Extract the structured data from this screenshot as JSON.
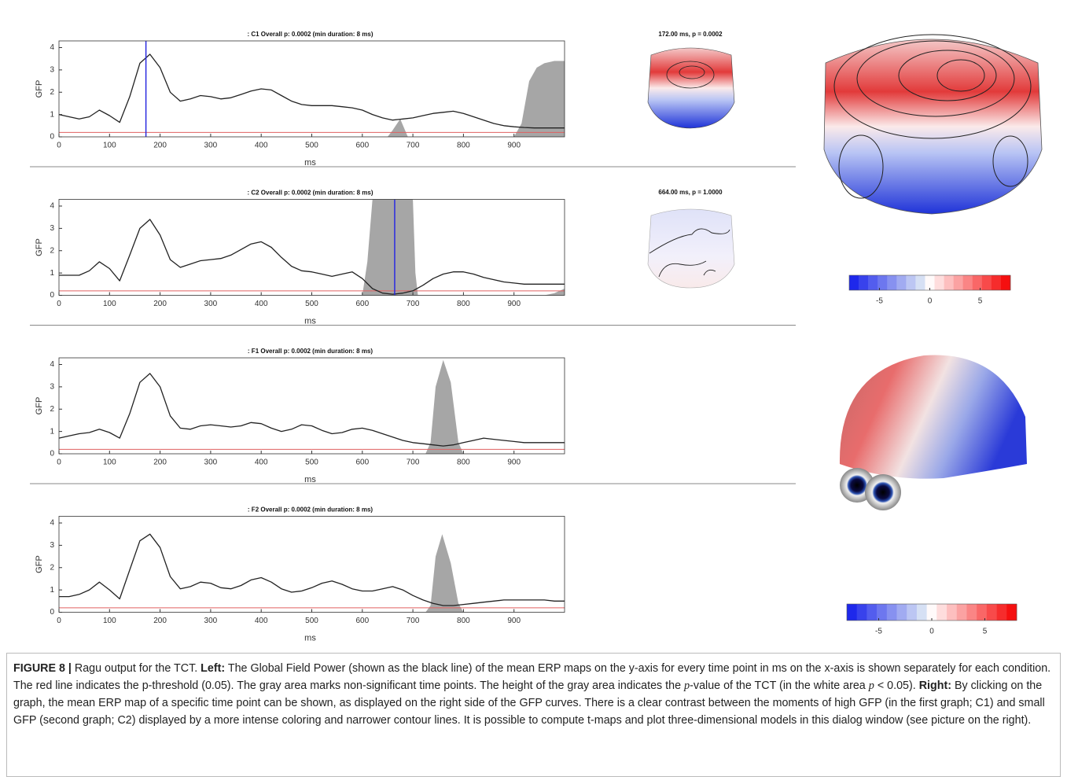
{
  "chart_data": [
    {
      "type": "line",
      "title": ": C1  Overall p: 0.0002 (min duration: 8 ms)",
      "xlabel": "ms",
      "ylabel": "GFP",
      "x": [
        0,
        20,
        40,
        60,
        80,
        100,
        120,
        140,
        160,
        180,
        200,
        220,
        240,
        260,
        280,
        300,
        320,
        340,
        360,
        380,
        400,
        420,
        440,
        460,
        480,
        500,
        520,
        540,
        560,
        580,
        600,
        620,
        640,
        660,
        680,
        700,
        720,
        740,
        760,
        780,
        800,
        820,
        840,
        860,
        880,
        900,
        920,
        940,
        960,
        980,
        1000
      ],
      "series": [
        {
          "color": "#222222",
          "values": [
            1.0,
            0.9,
            0.8,
            0.9,
            1.2,
            0.95,
            0.65,
            1.8,
            3.3,
            3.7,
            3.1,
            2.0,
            1.6,
            1.7,
            1.85,
            1.8,
            1.7,
            1.75,
            1.9,
            2.05,
            2.15,
            2.1,
            1.85,
            1.6,
            1.45,
            1.4,
            1.4,
            1.4,
            1.35,
            1.3,
            1.2,
            1.0,
            0.85,
            0.75,
            0.8,
            0.85,
            0.95,
            1.05,
            1.1,
            1.15,
            1.05,
            0.9,
            0.75,
            0.6,
            0.5,
            0.45,
            0.42,
            0.4,
            0.4,
            0.4,
            0.4
          ]
        },
        {
          "type": "area",
          "color": "#a6a6a6",
          "x": [
            650,
            660,
            675,
            690,
            900,
            915,
            930,
            945,
            960,
            980,
            1000
          ],
          "values": [
            0,
            0.3,
            0.8,
            0,
            0,
            0.6,
            2.5,
            3.1,
            3.3,
            3.4,
            3.4
          ]
        }
      ],
      "threshold": 0.2,
      "threshold_color": "#e06060",
      "cursor": 172,
      "cursor_color": "#2a2ae0",
      "xlim": [
        0,
        1000
      ],
      "ylim": [
        0,
        4.3
      ],
      "xticks": [
        0,
        100,
        200,
        300,
        400,
        500,
        600,
        700,
        800,
        900
      ],
      "yticks": [
        0,
        1,
        2,
        3,
        4
      ]
    },
    {
      "type": "line",
      "title": ": C2  Overall p: 0.0002 (min duration: 8 ms)",
      "xlabel": "ms",
      "ylabel": "GFP",
      "x": [
        0,
        20,
        40,
        60,
        80,
        100,
        120,
        140,
        160,
        180,
        200,
        220,
        240,
        260,
        280,
        300,
        320,
        340,
        360,
        380,
        400,
        420,
        440,
        460,
        480,
        500,
        520,
        540,
        560,
        580,
        600,
        620,
        640,
        660,
        680,
        700,
        720,
        740,
        760,
        780,
        800,
        820,
        840,
        860,
        880,
        900,
        920,
        940,
        960,
        980,
        1000
      ],
      "series": [
        {
          "color": "#222222",
          "values": [
            0.9,
            0.9,
            0.9,
            1.1,
            1.5,
            1.2,
            0.65,
            1.8,
            3.0,
            3.4,
            2.7,
            1.6,
            1.25,
            1.4,
            1.55,
            1.6,
            1.65,
            1.8,
            2.05,
            2.3,
            2.4,
            2.15,
            1.7,
            1.3,
            1.1,
            1.05,
            0.95,
            0.85,
            0.95,
            1.05,
            0.75,
            0.3,
            0.1,
            0.05,
            0.1,
            0.2,
            0.45,
            0.75,
            0.95,
            1.05,
            1.05,
            0.95,
            0.8,
            0.7,
            0.6,
            0.55,
            0.5,
            0.5,
            0.5,
            0.5,
            0.5
          ]
        },
        {
          "type": "area",
          "color": "#a6a6a6",
          "x": [
            600,
            610,
            620,
            700,
            705,
            710,
            960,
            980,
            1000
          ],
          "values": [
            0,
            1.5,
            4.3,
            4.3,
            1.0,
            0,
            0,
            0.1,
            0.3
          ]
        }
      ],
      "threshold": 0.2,
      "threshold_color": "#e06060",
      "cursor": 664,
      "cursor_color": "#2a2ae0",
      "xlim": [
        0,
        1000
      ],
      "ylim": [
        0,
        4.3
      ],
      "xticks": [
        0,
        100,
        200,
        300,
        400,
        500,
        600,
        700,
        800,
        900
      ],
      "yticks": [
        0,
        1,
        2,
        3,
        4
      ]
    },
    {
      "type": "line",
      "title": ": F1  Overall p: 0.0002 (min duration: 8 ms)",
      "xlabel": "ms",
      "ylabel": "GFP",
      "x": [
        0,
        20,
        40,
        60,
        80,
        100,
        120,
        140,
        160,
        180,
        200,
        220,
        240,
        260,
        280,
        300,
        320,
        340,
        360,
        380,
        400,
        420,
        440,
        460,
        480,
        500,
        520,
        540,
        560,
        580,
        600,
        620,
        640,
        660,
        680,
        700,
        720,
        740,
        760,
        780,
        800,
        820,
        840,
        860,
        880,
        900,
        920,
        940,
        960,
        980,
        1000
      ],
      "series": [
        {
          "color": "#222222",
          "values": [
            0.7,
            0.8,
            0.9,
            0.95,
            1.1,
            0.95,
            0.7,
            1.8,
            3.2,
            3.6,
            3.0,
            1.7,
            1.15,
            1.1,
            1.25,
            1.3,
            1.25,
            1.2,
            1.25,
            1.4,
            1.35,
            1.15,
            1.0,
            1.1,
            1.3,
            1.25,
            1.05,
            0.9,
            0.95,
            1.1,
            1.15,
            1.05,
            0.9,
            0.75,
            0.6,
            0.5,
            0.45,
            0.4,
            0.35,
            0.4,
            0.5,
            0.6,
            0.7,
            0.65,
            0.6,
            0.55,
            0.5,
            0.5,
            0.5,
            0.5,
            0.5
          ]
        },
        {
          "type": "area",
          "color": "#a6a6a6",
          "x": [
            725,
            735,
            745,
            760,
            775,
            790,
            800
          ],
          "values": [
            0,
            0.5,
            3.0,
            4.2,
            3.2,
            0.5,
            0
          ]
        }
      ],
      "threshold": 0.2,
      "threshold_color": "#e06060",
      "xlim": [
        0,
        1000
      ],
      "ylim": [
        0,
        4.3
      ],
      "xticks": [
        0,
        100,
        200,
        300,
        400,
        500,
        600,
        700,
        800,
        900
      ],
      "yticks": [
        0,
        1,
        2,
        3,
        4
      ]
    },
    {
      "type": "line",
      "title": ": F2  Overall p: 0.0002 (min duration: 8 ms)",
      "xlabel": "ms",
      "ylabel": "GFP",
      "x": [
        0,
        20,
        40,
        60,
        80,
        100,
        120,
        140,
        160,
        180,
        200,
        220,
        240,
        260,
        280,
        300,
        320,
        340,
        360,
        380,
        400,
        420,
        440,
        460,
        480,
        500,
        520,
        540,
        560,
        580,
        600,
        620,
        640,
        660,
        680,
        700,
        720,
        740,
        760,
        780,
        800,
        820,
        840,
        860,
        880,
        900,
        920,
        940,
        960,
        980,
        1000
      ],
      "series": [
        {
          "color": "#222222",
          "values": [
            0.7,
            0.7,
            0.8,
            1.0,
            1.35,
            1.0,
            0.6,
            1.9,
            3.2,
            3.5,
            2.9,
            1.6,
            1.05,
            1.15,
            1.35,
            1.3,
            1.1,
            1.05,
            1.2,
            1.45,
            1.55,
            1.35,
            1.05,
            0.9,
            0.95,
            1.1,
            1.3,
            1.4,
            1.25,
            1.05,
            0.95,
            0.95,
            1.05,
            1.15,
            1.0,
            0.75,
            0.55,
            0.4,
            0.3,
            0.3,
            0.35,
            0.4,
            0.45,
            0.5,
            0.55,
            0.55,
            0.55,
            0.55,
            0.55,
            0.5,
            0.5
          ]
        },
        {
          "type": "area",
          "color": "#a6a6a6",
          "x": [
            725,
            735,
            745,
            758,
            775,
            790,
            800
          ],
          "values": [
            0,
            0.3,
            2.5,
            3.5,
            2.2,
            0.4,
            0
          ]
        }
      ],
      "threshold": 0.2,
      "threshold_color": "#e06060",
      "xlim": [
        0,
        1000
      ],
      "ylim": [
        0,
        4.3
      ],
      "xticks": [
        0,
        100,
        200,
        300,
        400,
        500,
        600,
        700,
        800,
        900
      ],
      "yticks": [
        0,
        1,
        2,
        3,
        4
      ]
    }
  ],
  "topomaps": [
    {
      "label": "172.00 ms, p = 0.0002"
    },
    {
      "label": "664.00 ms, p = 1.0000"
    }
  ],
  "colorbars": [
    {
      "lim": [
        -8,
        8
      ],
      "ticks": [
        -5,
        0,
        5
      ]
    },
    {
      "lim": [
        -8,
        8
      ],
      "ticks": [
        -5,
        0,
        5
      ]
    }
  ],
  "caption": [
    {
      "text": "FIGURE 8 |",
      "style": "bold"
    },
    {
      "text": " Ragu output for the TCT. ",
      "style": "normal"
    },
    {
      "text": "Left:",
      "style": "bold"
    },
    {
      "text": " The Global Field Power (shown as the black line) of the mean ERP maps on the y-axis for every time point in ms on the x-axis is shown separately for each condition. The red line indicates the p-threshold (0.05). The gray area marks non-significant time points. The height of the gray area indicates the ",
      "style": "normal"
    },
    {
      "text": "p",
      "style": "italic"
    },
    {
      "text": "-value of the TCT (in the white area ",
      "style": "normal"
    },
    {
      "text": "p",
      "style": "italic"
    },
    {
      "text": " < 0.05). ",
      "style": "normal"
    },
    {
      "text": "Right:",
      "style": "bold"
    },
    {
      "text": " By clicking on the graph, the mean ERP map of a specific time point can be shown, as displayed on the right side of the GFP curves. There is a clear contrast between the moments of high GFP (in the first graph; C1) and small GFP (second graph; C2) displayed by a more intense coloring and narrower contour lines. It is possible to compute t-maps and plot three-dimensional models in this dialog window (see picture on the right).",
      "style": "normal"
    }
  ]
}
